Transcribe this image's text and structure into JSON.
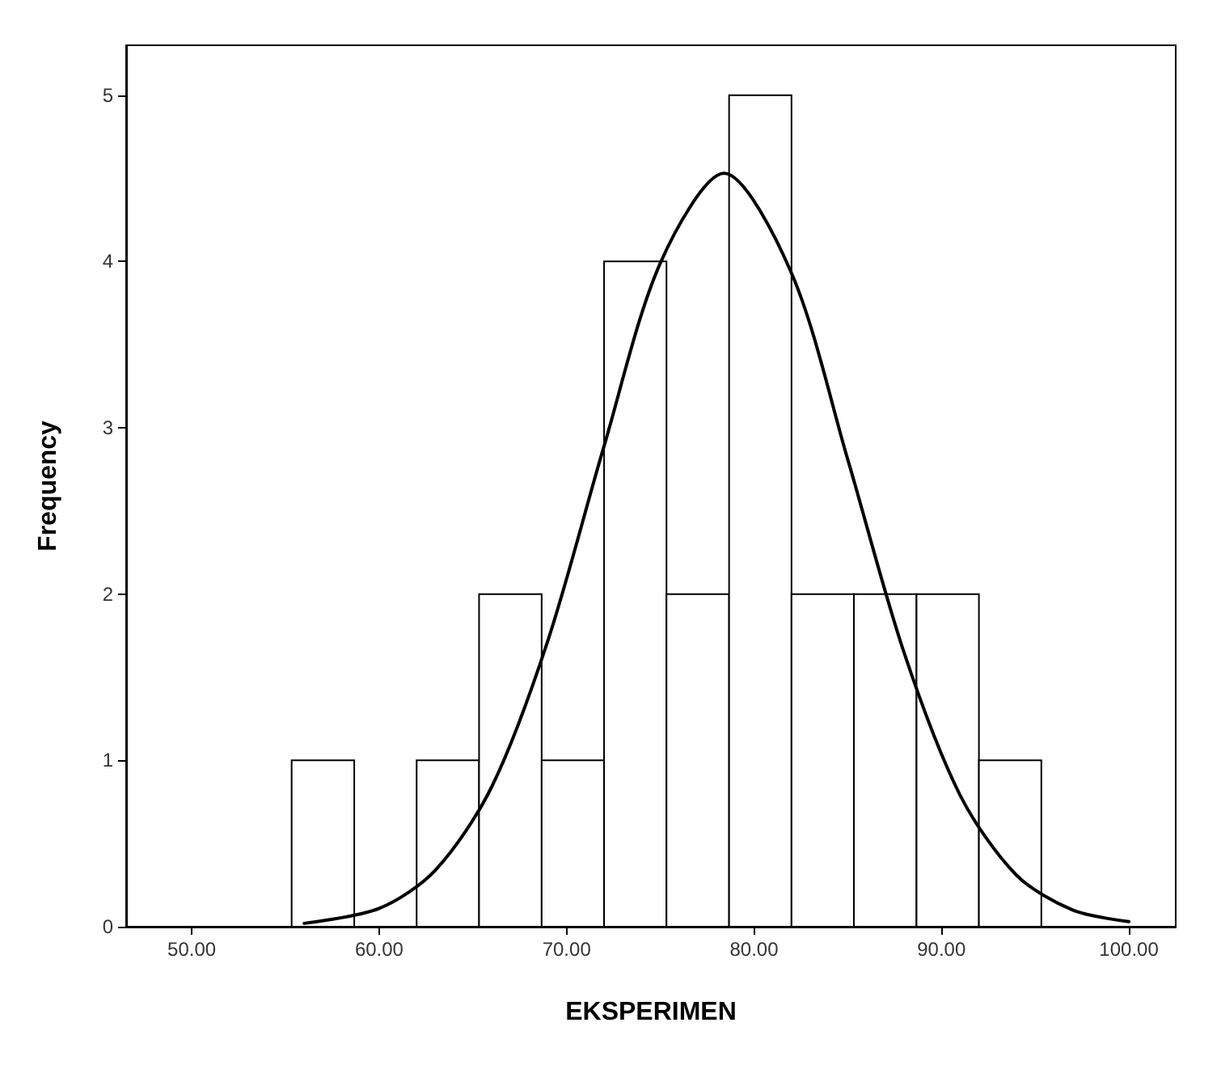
{
  "chart_data": {
    "type": "histogram",
    "xlabel": "EKSPERIMEN",
    "ylabel": "Frequency",
    "series": [
      {
        "type": "histogram",
        "color": "#ffffff",
        "bins": [
          55.33,
          58.67,
          62,
          65.33,
          68.67,
          72,
          75.33,
          78.67,
          82,
          85.33,
          88.67,
          92,
          95.33
        ],
        "values": [
          1,
          0,
          1,
          2,
          1,
          4,
          2,
          5,
          2,
          2,
          2,
          1
        ]
      },
      {
        "type": "line",
        "color": "#000000",
        "x": [
          56,
          60,
          63,
          66,
          69,
          72,
          75,
          78.4,
          82,
          85,
          88,
          91,
          94,
          97,
          100
        ],
        "values": [
          0.02,
          0.11,
          0.34,
          0.84,
          1.72,
          2.89,
          3.99,
          4.53,
          3.93,
          2.81,
          1.65,
          0.79,
          0.31,
          0.1,
          0.03
        ]
      }
    ],
    "xlim": [
      46.5,
      102.5
    ],
    "ylim": [
      0,
      5.3
    ],
    "xticks": [
      {
        "value": 50,
        "label": "50.00"
      },
      {
        "value": 60,
        "label": "60.00"
      },
      {
        "value": 70,
        "label": "70.00"
      },
      {
        "value": 80,
        "label": "80.00"
      },
      {
        "value": 90,
        "label": "90.00"
      },
      {
        "value": 100,
        "label": "100.00"
      }
    ],
    "yticks": [
      0,
      1,
      2,
      3,
      4,
      5
    ],
    "marker": "none",
    "grid": false
  }
}
